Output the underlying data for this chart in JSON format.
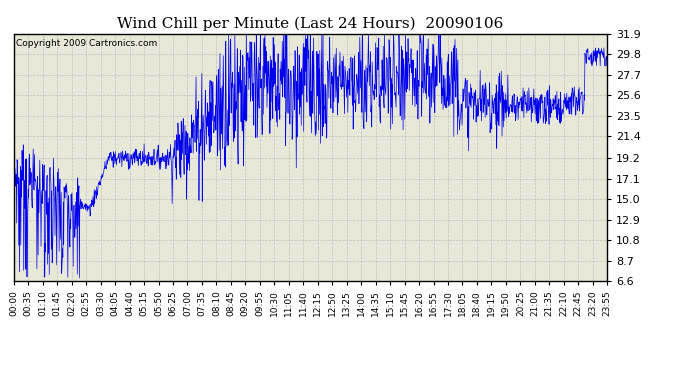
{
  "title": "Wind Chill per Minute (Last 24 Hours)  20090106",
  "copyright": "Copyright 2009 Cartronics.com",
  "line_color": "#0000EE",
  "background_color": "#ffffff",
  "plot_bg_color": "#e8e8d8",
  "grid_color": "#bbbbbb",
  "yticks": [
    6.6,
    8.7,
    10.8,
    12.9,
    15.0,
    17.1,
    19.2,
    21.4,
    23.5,
    25.6,
    27.7,
    29.8,
    31.9
  ],
  "ymin": 6.6,
  "ymax": 31.9,
  "x_labels": [
    "00:00",
    "00:35",
    "01:10",
    "01:45",
    "02:20",
    "02:55",
    "03:30",
    "04:05",
    "04:40",
    "05:15",
    "05:50",
    "06:25",
    "07:00",
    "07:35",
    "08:10",
    "08:45",
    "09:20",
    "09:55",
    "10:30",
    "11:05",
    "11:40",
    "12:15",
    "12:50",
    "13:25",
    "14:00",
    "14:35",
    "15:10",
    "15:45",
    "16:20",
    "16:55",
    "17:30",
    "18:05",
    "18:40",
    "19:15",
    "19:50",
    "20:25",
    "21:00",
    "21:35",
    "22:10",
    "22:45",
    "23:20",
    "23:55"
  ],
  "title_fontsize": 12,
  "copyright_fontsize": 7
}
